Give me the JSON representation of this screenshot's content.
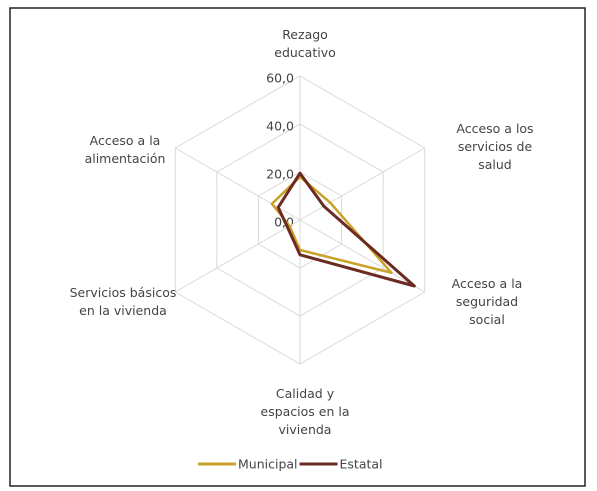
{
  "chart_data": {
    "type": "radar",
    "categories": [
      "Rezago educativo",
      "Acceso a los servicios de salud",
      "Acceso a la seguridad social",
      "Calidad y espacios en la vivienda",
      "Servicios básicos en la vivienda",
      "Acceso a la alimentación"
    ],
    "series": [
      {
        "name": "Municipal",
        "color": "#c9a227",
        "values": [
          18,
          14.5,
          44,
          12.5,
          5,
          13.5
        ]
      },
      {
        "name": "Estatal",
        "color": "#6b2a22",
        "values": [
          19.5,
          11.5,
          55,
          14.5,
          6,
          10.5
        ]
      }
    ],
    "ylim": [
      0,
      60
    ],
    "yticks": [
      {
        "value": 0,
        "label": "0,0"
      },
      {
        "value": 20,
        "label": "20,0"
      },
      {
        "value": 40,
        "label": "40,0"
      },
      {
        "value": 60,
        "label": "60,0"
      }
    ],
    "grid": true,
    "legend": "bottom"
  }
}
